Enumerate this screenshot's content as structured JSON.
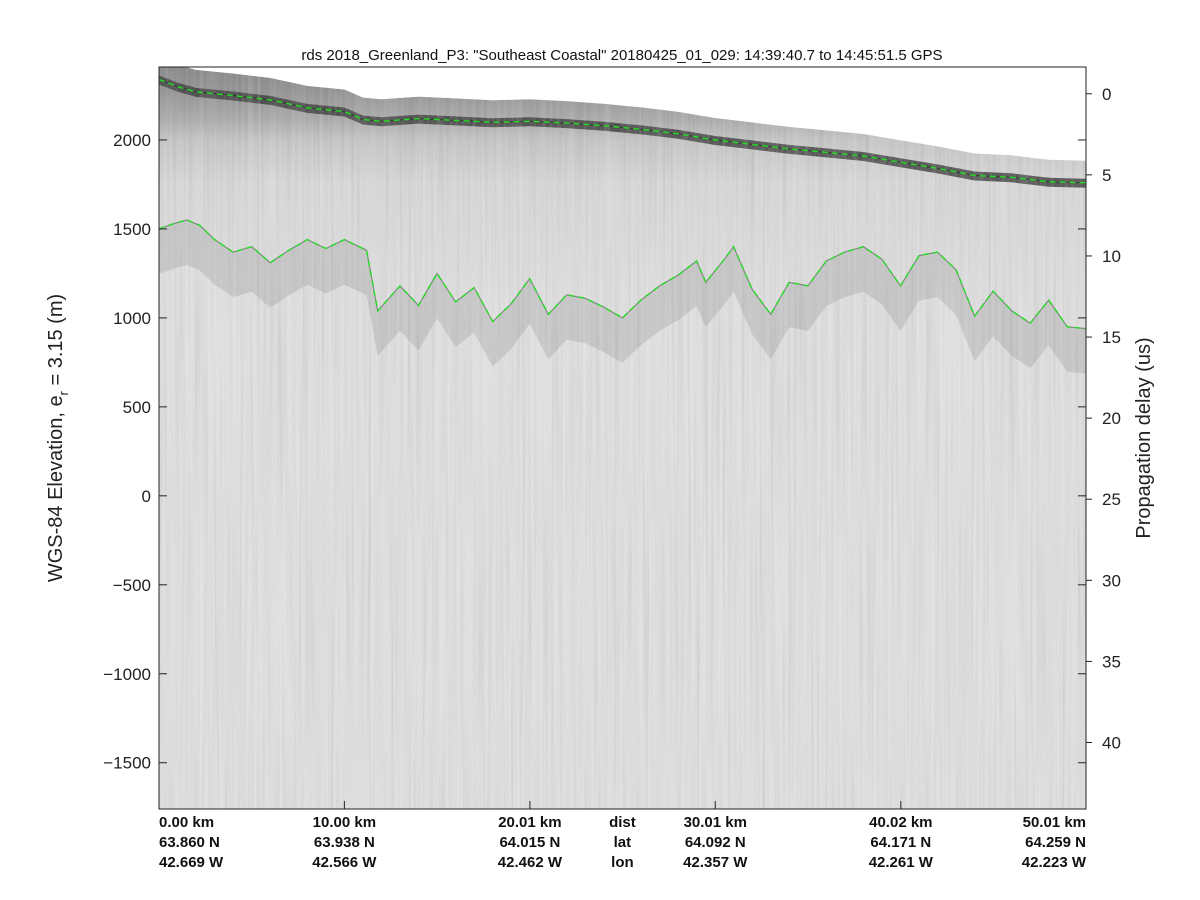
{
  "chart_data": {
    "type": "radargram",
    "title": "rds 2018_Greenland_P3: \"Southeast Coastal\"  20180425_01_029: 14:39:40.7 to 14:45:51.5 GPS",
    "ylabel": "WGS-84 Elevation, e",
    "ylabel_sub": "r",
    "ylabel_tail": " = 3.15 (m)",
    "y2label": "Propagation delay (us)",
    "xlim": [
      0,
      50.01
    ],
    "ylim": [
      -1760,
      2410
    ],
    "y2lim": [
      -1.65,
      44.1
    ],
    "grid": false,
    "legend": "none",
    "colormap": "grayscale",
    "y_ticks": [
      "2000",
      "1500",
      "1000",
      "500",
      "0",
      "−500",
      "−1000",
      "−1500"
    ],
    "y_tick_values": [
      2000,
      1500,
      1000,
      500,
      0,
      -500,
      -1000,
      -1500
    ],
    "y2_ticks": [
      "0",
      "5",
      "10",
      "15",
      "20",
      "25",
      "30",
      "35",
      "40"
    ],
    "y2_tick_values": [
      0,
      5,
      10,
      15,
      20,
      25,
      30,
      35,
      40
    ],
    "x_ticks": [
      {
        "km": 0.0,
        "dist": "0.00 km",
        "lat": "63.860 N",
        "lon": "42.669 W",
        "align": "start"
      },
      {
        "km": 10.0,
        "dist": "10.00 km",
        "lat": "63.938 N",
        "lon": "42.566 W",
        "align": "middle"
      },
      {
        "km": 20.01,
        "dist": "20.01 km",
        "lat": "64.015 N",
        "lon": "42.462 W",
        "align": "middle"
      },
      {
        "km": 30.01,
        "dist": "30.01 km",
        "lat": "64.092 N",
        "lon": "42.357 W",
        "align": "middle"
      },
      {
        "km": 40.02,
        "dist": "40.02 km",
        "lat": "64.171 N",
        "lon": "42.261 W",
        "align": "middle"
      },
      {
        "km": 50.01,
        "dist": "50.01 km",
        "lat": "64.259 N",
        "lon": "42.223 W",
        "align": "end"
      }
    ],
    "row_labels": {
      "km": 25.0,
      "dist": "dist",
      "lat": "lat",
      "lon": "lon"
    },
    "series": [
      {
        "color": "#22dd22",
        "style": "dashed",
        "x": [
          0,
          1,
          2,
          4,
          6,
          8,
          10,
          11,
          12,
          14,
          16,
          18,
          20,
          22,
          24,
          26,
          28,
          30,
          32,
          34,
          36,
          38,
          40,
          42,
          44,
          46,
          48,
          50.01
        ],
        "y": [
          2340,
          2300,
          2270,
          2250,
          2225,
          2180,
          2160,
          2115,
          2105,
          2120,
          2110,
          2100,
          2105,
          2095,
          2080,
          2060,
          2035,
          2000,
          1975,
          1950,
          1930,
          1910,
          1875,
          1840,
          1800,
          1790,
          1765,
          1760
        ]
      },
      {
        "color": "#22dd22",
        "style": "dashed",
        "x": [
          0,
          0.8,
          1.5,
          2.2,
          3,
          4,
          5,
          6,
          7,
          8,
          9,
          10,
          11.2,
          11.8,
          13,
          14,
          15,
          16,
          17,
          18,
          19,
          20,
          21,
          22,
          23,
          24,
          25,
          26,
          27,
          28,
          29,
          29.5,
          30.5,
          31,
          32,
          33,
          34,
          35,
          36,
          37,
          38,
          39,
          40,
          41,
          42,
          43,
          44,
          45,
          46,
          47,
          48,
          49,
          50.01
        ],
        "y": [
          1500,
          1530,
          1550,
          1520,
          1440,
          1370,
          1400,
          1310,
          1380,
          1440,
          1390,
          1440,
          1380,
          1040,
          1180,
          1070,
          1250,
          1090,
          1170,
          980,
          1080,
          1220,
          1020,
          1130,
          1110,
          1060,
          1000,
          1100,
          1180,
          1240,
          1320,
          1200,
          1330,
          1400,
          1160,
          1020,
          1200,
          1180,
          1320,
          1370,
          1400,
          1330,
          1180,
          1350,
          1370,
          1270,
          1010,
          1150,
          1040,
          970,
          1100,
          950,
          940
        ]
      }
    ]
  }
}
